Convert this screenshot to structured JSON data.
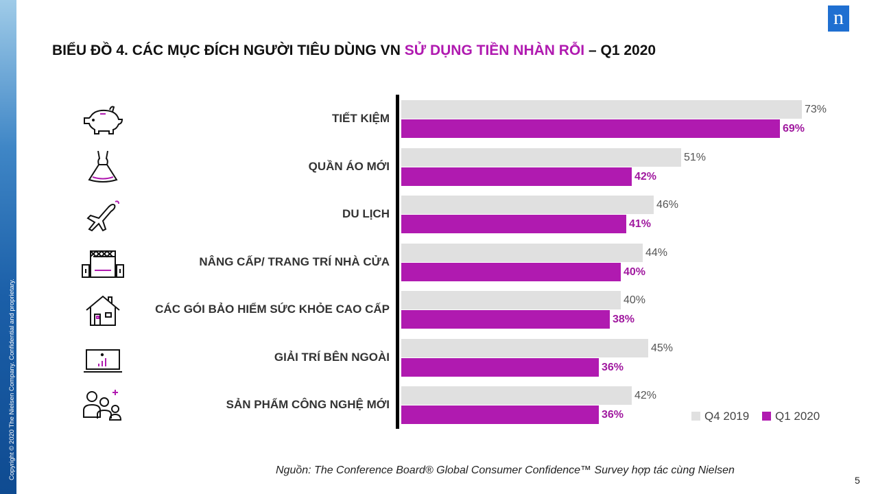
{
  "copyright": "Copyright © 2020 The Nielsen Company. Confidential and proprietary.",
  "logo": "n",
  "title": {
    "part1": "BIỂU ĐỒ 4. CÁC MỤC ĐÍCH NGƯỜI TIÊU DÙNG VN ",
    "highlight": "SỬ DỤNG TIỀN NHÀN RỖI",
    "part2": " – Q1 2020"
  },
  "icons": [
    "piggy-bank-icon",
    "dress-icon",
    "airplane-icon",
    "home-theater-icon",
    "house-icon",
    "monitor-icon",
    "people-icon"
  ],
  "chart_data": {
    "type": "bar",
    "orientation": "horizontal",
    "categories": [
      "TIẾT KIỆM",
      "QUẦN ÁO MỚI",
      "DU LỊCH",
      "NÂNG CẤP/ TRANG TRÍ NHÀ CỬA",
      "CÁC GÓI BẢO HIỂM SỨC KHỎE CAO CẤP",
      "GIẢI TRÍ BÊN NGOÀI",
      "SẢN PHẨM CÔNG NGHỆ MỚI"
    ],
    "series": [
      {
        "name": "Q4 2019",
        "color": "#e0e0e0",
        "values": [
          73,
          51,
          46,
          44,
          40,
          45,
          42
        ],
        "labels": [
          "73%",
          "51%",
          "46%",
          "44%",
          "40%",
          "45%",
          "42%"
        ]
      },
      {
        "name": "Q1 2020",
        "color": "#b01ab0",
        "values": [
          69,
          42,
          41,
          40,
          38,
          36,
          36
        ],
        "labels": [
          "69%",
          "42%",
          "41%",
          "40%",
          "38%",
          "36%",
          "36%"
        ]
      }
    ],
    "xlim": [
      0,
      73
    ],
    "legend_position": "bottom-right"
  },
  "source": "Nguồn: The Conference Board® Global Consumer Confidence™ Survey hợp tác cùng Nielsen",
  "page_number": "5"
}
